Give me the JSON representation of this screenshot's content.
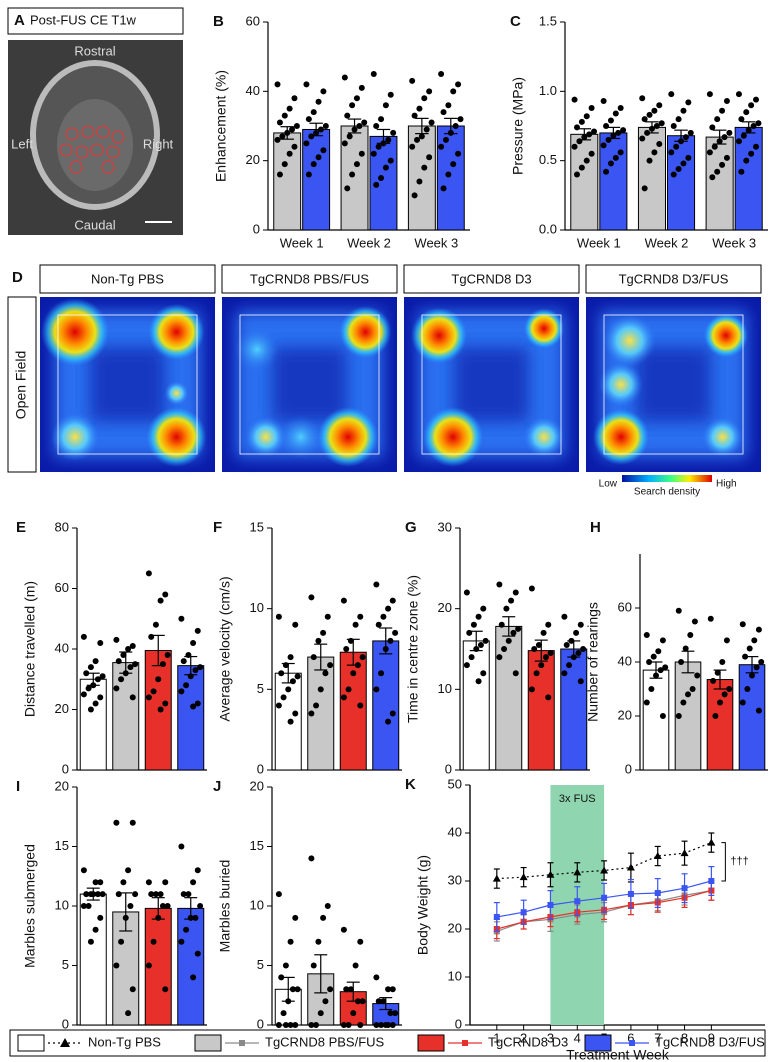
{
  "panel_a": {
    "panel": "A",
    "title": "Post-FUS CE T1w",
    "labels": [
      "Rostral",
      "Left",
      "Right",
      "Caudal"
    ]
  },
  "panel_d": {
    "panel": "D",
    "row_label": "Open Field",
    "titles": [
      "Non-Tg PBS",
      "TgCRND8 PBS/FUS",
      "TgCRND8 D3",
      "TgCRND8 D3/FUS"
    ],
    "colorbar": {
      "low": "Low",
      "high": "High",
      "label": "Search density"
    }
  },
  "legend": [
    {
      "label": "Non-Tg PBS",
      "color": "#ffffff",
      "line_color": "#000000",
      "marker": "triangle",
      "dashed": true
    },
    {
      "label": "TgCRND8 PBS/FUS",
      "color": "#c8c8c8",
      "line_color": "#8a8a8a",
      "marker": "square",
      "dashed": false
    },
    {
      "label": "TgCRND8 D3",
      "color": "#e8302a",
      "line_color": "#e8302a",
      "marker": "square",
      "dashed": false
    },
    {
      "label": "TgCRND8 D3/FUS",
      "color": "#3b55f2",
      "line_color": "#3b55f2",
      "marker": "square",
      "dashed": false
    }
  ],
  "chart_data": [
    {
      "panel": "B",
      "type": "bar",
      "y_label": "Enhancement (%)",
      "categories": [
        "Week 1",
        "Week 2",
        "Week 3"
      ],
      "ylim": [
        0,
        60
      ],
      "yticks": [
        0,
        20,
        40,
        60
      ],
      "series": [
        {
          "color": "#c8c8c8",
          "values": [
            28,
            30,
            30
          ],
          "errors": [
            1.8,
            2,
            2.2
          ],
          "points": [
            [
              42,
              38,
              35,
              33,
              31,
              30,
              29,
              28,
              27,
              26,
              24,
              22,
              19,
              16
            ],
            [
              44,
              41,
              38,
              36,
              33,
              31,
              30,
              29,
              27,
              25,
              22,
              19,
              16,
              12
            ],
            [
              43,
              40,
              38,
              35,
              33,
              31,
              29,
              27,
              26,
              24,
              21,
              18,
              14,
              10
            ]
          ]
        },
        {
          "color": "#3b55f2",
          "values": [
            29,
            27,
            30
          ],
          "errors": [
            1.8,
            2,
            2.2
          ],
          "points": [
            [
              42,
              40,
              37,
              34,
              32,
              30,
              29,
              28,
              27,
              25,
              23,
              21,
              19,
              16
            ],
            [
              45,
              39,
              36,
              32,
              30,
              28,
              26,
              25,
              24,
              22,
              20,
              18,
              15,
              13
            ],
            [
              45,
              42,
              40,
              36,
              34,
              32,
              30,
              28,
              26,
              24,
              22,
              19,
              16,
              12
            ]
          ]
        }
      ]
    },
    {
      "panel": "C",
      "type": "bar",
      "y_label": "Pressure (MPa)",
      "categories": [
        "Week 1",
        "Week 2",
        "Week 3"
      ],
      "ylim": [
        0,
        1.5
      ],
      "yticks": [
        {
          "value": 0,
          "label": "0.0"
        },
        0.5,
        {
          "value": 1,
          "label": "1.0"
        },
        1.5
      ],
      "series": [
        {
          "color": "#c8c8c8",
          "values": [
            0.69,
            0.74,
            0.67
          ],
          "errors": [
            0.04,
            0.04,
            0.05
          ],
          "points": [
            [
              0.94,
              0.88,
              0.82,
              0.78,
              0.74,
              0.71,
              0.69,
              0.67,
              0.64,
              0.6,
              0.55,
              0.5,
              0.45,
              0.4
            ],
            [
              0.95,
              0.9,
              0.86,
              0.83,
              0.8,
              0.77,
              0.75,
              0.73,
              0.7,
              0.66,
              0.62,
              0.56,
              0.5,
              0.3
            ],
            [
              0.98,
              0.93,
              0.86,
              0.8,
              0.74,
              0.7,
              0.67,
              0.64,
              0.6,
              0.56,
              0.52,
              0.47,
              0.42,
              0.38
            ]
          ]
        },
        {
          "color": "#3b55f2",
          "values": [
            0.7,
            0.68,
            0.74
          ],
          "errors": [
            0.04,
            0.04,
            0.04
          ],
          "points": [
            [
              0.93,
              0.88,
              0.84,
              0.79,
              0.75,
              0.72,
              0.7,
              0.68,
              0.65,
              0.61,
              0.56,
              0.52,
              0.48,
              0.42
            ],
            [
              0.98,
              0.92,
              0.86,
              0.8,
              0.75,
              0.7,
              0.67,
              0.64,
              0.6,
              0.56,
              0.52,
              0.48,
              0.44,
              0.4
            ],
            [
              0.98,
              0.94,
              0.9,
              0.85,
              0.8,
              0.77,
              0.75,
              0.72,
              0.68,
              0.64,
              0.6,
              0.55,
              0.5,
              0.42
            ]
          ]
        }
      ]
    },
    {
      "panel": "E",
      "type": "bar",
      "y_label": "Distance  travelled (m)",
      "ylim": [
        0,
        80
      ],
      "yticks": [
        0,
        20,
        40,
        60,
        80
      ],
      "colors": [
        "#ffffff",
        "#c8c8c8",
        "#e8302a",
        "#3b55f2"
      ],
      "values": [
        30,
        35.5,
        39.5,
        34.5
      ],
      "errors": [
        2,
        3.5,
        5,
        3
      ],
      "points": [
        [
          44,
          42,
          36,
          34,
          32,
          31,
          30,
          28,
          27,
          25,
          24,
          22,
          20
        ],
        [
          43,
          41,
          40,
          38,
          36,
          35,
          34,
          32,
          30,
          27,
          24
        ],
        [
          65,
          58,
          56,
          48,
          44,
          38,
          35,
          30,
          26,
          24,
          22,
          20
        ],
        [
          50,
          46,
          42,
          38,
          36,
          34,
          33,
          31,
          28,
          26,
          22,
          21
        ]
      ]
    },
    {
      "panel": "F",
      "type": "bar",
      "y_label": "Average velocity (cm/s)",
      "ylim": [
        0,
        15
      ],
      "yticks": [
        0,
        5,
        10,
        15
      ],
      "colors": [
        "#ffffff",
        "#c8c8c8",
        "#e8302a",
        "#3b55f2"
      ],
      "values": [
        6,
        7,
        7.3,
        8
      ],
      "errors": [
        0.6,
        0.8,
        0.8,
        0.8
      ],
      "points": [
        [
          9.5,
          9,
          7,
          6.5,
          6,
          5.8,
          5.5,
          5,
          4.5,
          4,
          3.5,
          3
        ],
        [
          10.7,
          9.5,
          8.5,
          8,
          7,
          6.5,
          6,
          5,
          4,
          3.5
        ],
        [
          10.5,
          9.5,
          9,
          8,
          7.5,
          7,
          6.5,
          6,
          5,
          4.5,
          4
        ],
        [
          11.5,
          10.5,
          10,
          9.5,
          9,
          8.5,
          8,
          7.5,
          6,
          5,
          3.5,
          3
        ]
      ]
    },
    {
      "panel": "G",
      "type": "bar",
      "y_label": "Time in centre zone (%)",
      "ylim": [
        0,
        30
      ],
      "yticks": [
        0,
        10,
        20,
        30
      ],
      "colors": [
        "#ffffff",
        "#c8c8c8",
        "#e8302a",
        "#3b55f2"
      ],
      "values": [
        16,
        17.8,
        14.8,
        15
      ],
      "errors": [
        1.2,
        1.2,
        1.3,
        1
      ],
      "points": [
        [
          22,
          20,
          19,
          18,
          17,
          16,
          15.5,
          15,
          14,
          13,
          12,
          11
        ],
        [
          23,
          22,
          21,
          20,
          18,
          17.5,
          17,
          16,
          15,
          14,
          12
        ],
        [
          22.5,
          18,
          17,
          15.5,
          15,
          14.5,
          14,
          13,
          12,
          10,
          9
        ],
        [
          19,
          18,
          17,
          16,
          15.5,
          15,
          14.5,
          14,
          13,
          12,
          11
        ]
      ]
    },
    {
      "panel": "H",
      "type": "bar",
      "y_label": "Number of rearings",
      "ylim": [
        0,
        80
      ],
      "yticks": [
        0,
        20,
        40,
        60
      ],
      "colors": [
        "#ffffff",
        "#c8c8c8",
        "#e8302a",
        "#3b55f2"
      ],
      "values": [
        37,
        40,
        33.5,
        39
      ],
      "errors": [
        3,
        4,
        3.5,
        3
      ],
      "points": [
        [
          50,
          48,
          44,
          42,
          40,
          38,
          37,
          35,
          30,
          25,
          20
        ],
        [
          59,
          55,
          50,
          45,
          40,
          35,
          30,
          28,
          25,
          20
        ],
        [
          56,
          48,
          40,
          36,
          33,
          30,
          28,
          25,
          20
        ],
        [
          54,
          52,
          48,
          45,
          42,
          40,
          38,
          35,
          30,
          25,
          22
        ]
      ]
    },
    {
      "panel": "I",
      "type": "bar",
      "y_label": "Marbles submerged",
      "ylim": [
        0,
        20
      ],
      "yticks": [
        0,
        5,
        10,
        15,
        20
      ],
      "colors": [
        "#ffffff",
        "#c8c8c8",
        "#e8302a",
        "#3b55f2"
      ],
      "values": [
        11,
        9.5,
        9.8,
        9.8
      ],
      "errors": [
        0.5,
        1.6,
        0.9,
        0.9
      ],
      "points": [
        [
          13,
          12,
          12,
          11,
          11,
          11,
          11,
          11,
          10,
          10,
          9,
          8,
          7
        ],
        [
          17,
          17,
          13,
          12,
          11,
          11,
          10,
          9,
          7,
          5,
          3,
          1
        ],
        [
          12,
          12,
          11,
          11,
          11,
          10,
          10,
          9,
          7,
          5,
          3
        ],
        [
          15,
          13,
          12,
          11,
          11,
          10,
          9,
          9,
          8,
          7,
          6,
          4
        ]
      ]
    },
    {
      "panel": "J",
      "type": "bar",
      "y_label": "Marbles buried",
      "ylim": [
        0,
        20
      ],
      "yticks": [
        0,
        5,
        10,
        15,
        20
      ],
      "colors": [
        "#ffffff",
        "#c8c8c8",
        "#e8302a",
        "#3b55f2"
      ],
      "values": [
        3,
        4.3,
        2.8,
        1.8
      ],
      "errors": [
        1,
        1.6,
        0.8,
        0.5
      ],
      "points": [
        [
          11,
          9,
          7,
          5,
          4,
          3,
          3,
          2,
          1,
          0,
          0,
          0,
          0
        ],
        [
          14,
          10,
          9,
          7,
          5,
          3,
          2,
          1,
          0,
          0
        ],
        [
          8,
          7,
          5,
          3,
          3,
          2,
          2,
          1,
          0,
          0,
          0
        ],
        [
          4,
          3,
          3,
          2,
          2,
          1,
          1,
          0,
          0,
          0,
          0,
          0
        ]
      ]
    },
    {
      "panel": "K",
      "type": "line",
      "y_label": "Body Weight (g)",
      "x_label": "Treatment Week",
      "x": [
        1,
        2,
        3,
        4,
        5,
        6,
        7,
        8,
        9
      ],
      "xlim": [
        0,
        11
      ],
      "xticks": [
        1,
        2,
        3,
        4,
        5,
        6,
        7,
        8,
        9
      ],
      "ylim": [
        0,
        50
      ],
      "yticks": [
        0,
        10,
        20,
        30,
        40,
        50
      ],
      "shade": {
        "x": [
          3,
          5
        ],
        "label": "3x FUS",
        "color": "#8fd6b0"
      },
      "annotation": "†††",
      "series": [
        {
          "color": "#000000",
          "marker": "triangle",
          "dashed": true,
          "values": [
            30.5,
            30.8,
            31.3,
            31.8,
            32.2,
            32.8,
            35.2,
            35.8,
            38
          ],
          "errors": [
            2,
            2,
            2.5,
            2,
            2,
            3,
            2,
            2.5,
            2
          ]
        },
        {
          "color": "#8a8a8a",
          "marker": "square",
          "dashed": false,
          "values": [
            19.5,
            21.5,
            22,
            23,
            23.5,
            25,
            25.8,
            27,
            28
          ],
          "errors": [
            2,
            1.5,
            2.5,
            2,
            2,
            2,
            2,
            2,
            2
          ]
        },
        {
          "color": "#e8302a",
          "marker": "square",
          "dashed": false,
          "values": [
            20,
            21.5,
            22.5,
            23.5,
            24,
            25,
            25.5,
            26.5,
            28
          ],
          "errors": [
            2,
            1.5,
            2,
            2,
            2,
            2,
            2,
            2,
            2
          ]
        },
        {
          "color": "#3b55f2",
          "marker": "square",
          "dashed": false,
          "values": [
            22.5,
            23.5,
            25,
            25.8,
            26.5,
            27.3,
            27.5,
            28.5,
            30
          ],
          "errors": [
            3,
            2.5,
            3,
            3,
            3,
            3,
            3,
            3,
            3
          ]
        }
      ]
    }
  ]
}
